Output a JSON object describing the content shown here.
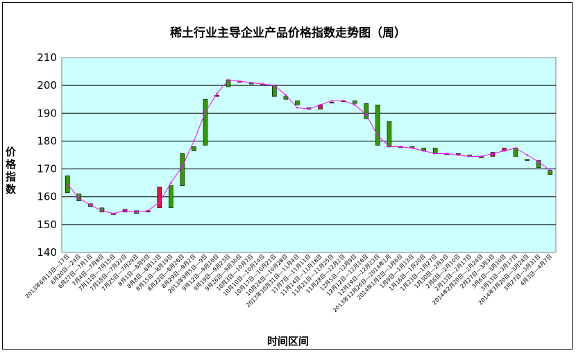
{
  "chart_data": {
    "type": "candlestick",
    "title": "稀土行业主导企业产品价格指数走势图（周）",
    "xlabel": "时间区间",
    "ylabel": "价格指数",
    "ylim": [
      140,
      210
    ],
    "yticks": [
      140,
      150,
      160,
      170,
      180,
      190,
      200,
      210
    ],
    "grid": true,
    "colors": {
      "plot_bg": "#ccffff",
      "up": "#e0143c",
      "down": "#339900",
      "line": "#ff00ff",
      "grid": "#000000"
    },
    "categories": [
      "2013年6月13日—17日",
      "6月20日—24日",
      "6月27日—7月1日",
      "7月4日—7月8日",
      "7月11日—7月15日",
      "7月18日—7月22日",
      "7月25日—7月29日",
      "8月1日—8月5日",
      "8月8日—8月12日",
      "8月15日—8月19日",
      "8月22日—8月26日",
      "8月29日—9月2日",
      "2013年9月5日—9日",
      "9月12日—9月16日",
      "9月19日—9月23日",
      "9月26日—9月30日",
      "10月3日—10月7日",
      "10月10日—10月14日",
      "10月17日—10月21日",
      "10月24日—10月28日",
      "2013年10月31日—11月4日",
      "11月7日—11月11日",
      "11月14日—11月18日",
      "11月21日—11月25日",
      "11月28日—12月2日",
      "12月5日—12月9日",
      "12月12日—12月16日",
      "12月19日—12月23日",
      "2013年12月26日—2014年1月",
      "2014年1月2日—1月6日",
      "1月9日—1月13日",
      "1月16日—1月20日",
      "1月23日—1月27日",
      "1月30日—2月3日",
      "2月6日—2月10日",
      "2月13日—2月17日",
      "2014年2月20日—2月24日",
      "2月27日—3月3日",
      "3月6日—3月10日",
      "3月13日—3月17日",
      "2014年3月20日—3月24日",
      "3月27日—3月31日",
      "4月3日—4月7日"
    ],
    "open": [
      167.5,
      161.0,
      157.5,
      156.0,
      154.0,
      154.5,
      155.0,
      154.5,
      156.0,
      164.0,
      175.5,
      178.0,
      195.0,
      196.0,
      202.0,
      201.5,
      201.0,
      200.5,
      200.0,
      196.0,
      194.5,
      192.0,
      191.5,
      194.0,
      194.5,
      194.5,
      193.5,
      193.0,
      187.0,
      178.0,
      178.0,
      177.5,
      177.5,
      175.5,
      175.5,
      175.0,
      174.5,
      174.5,
      176.5,
      177.5,
      173.5,
      173.0,
      169.5
    ],
    "close": [
      161.5,
      158.5,
      156.5,
      154.5,
      154.0,
      155.5,
      154.0,
      155.0,
      163.5,
      156.0,
      164.0,
      176.5,
      178.5,
      196.5,
      199.5,
      201.5,
      200.5,
      200.0,
      196.0,
      195.0,
      193.0,
      191.5,
      193.0,
      194.0,
      194.5,
      193.5,
      188.0,
      178.5,
      178.0,
      178.0,
      177.5,
      176.5,
      175.5,
      175.5,
      175.5,
      174.5,
      174.0,
      176.0,
      177.5,
      174.5,
      173.0,
      170.5,
      168.0
    ],
    "trend": [
      164.5,
      159.5,
      157.0,
      155.0,
      154.0,
      155.0,
      154.5,
      155.0,
      158.0,
      165.0,
      171.0,
      180.0,
      190.5,
      197.0,
      202.0,
      201.5,
      201.0,
      200.5,
      200.0,
      196.5,
      192.0,
      191.5,
      193.0,
      194.5,
      194.5,
      193.0,
      189.5,
      182.0,
      178.0,
      178.0,
      177.5,
      176.5,
      175.5,
      175.5,
      175.0,
      174.5,
      174.5,
      175.5,
      176.5,
      177.5,
      175.0,
      172.5,
      169.5
    ]
  }
}
